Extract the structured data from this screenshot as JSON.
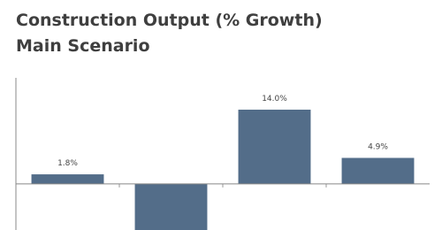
{
  "chart_data": {
    "type": "bar",
    "title": "Construction Output (% Growth)",
    "subtitle": "Main Scenario",
    "categories": [
      null,
      null,
      null,
      null
    ],
    "values": [
      1.8,
      -10,
      14.0,
      4.9
    ],
    "value_labels": [
      "1.8%",
      null,
      "14.0%",
      "4.9%"
    ],
    "color": "#536d89",
    "ylim": [
      -8.7,
      20
    ]
  }
}
